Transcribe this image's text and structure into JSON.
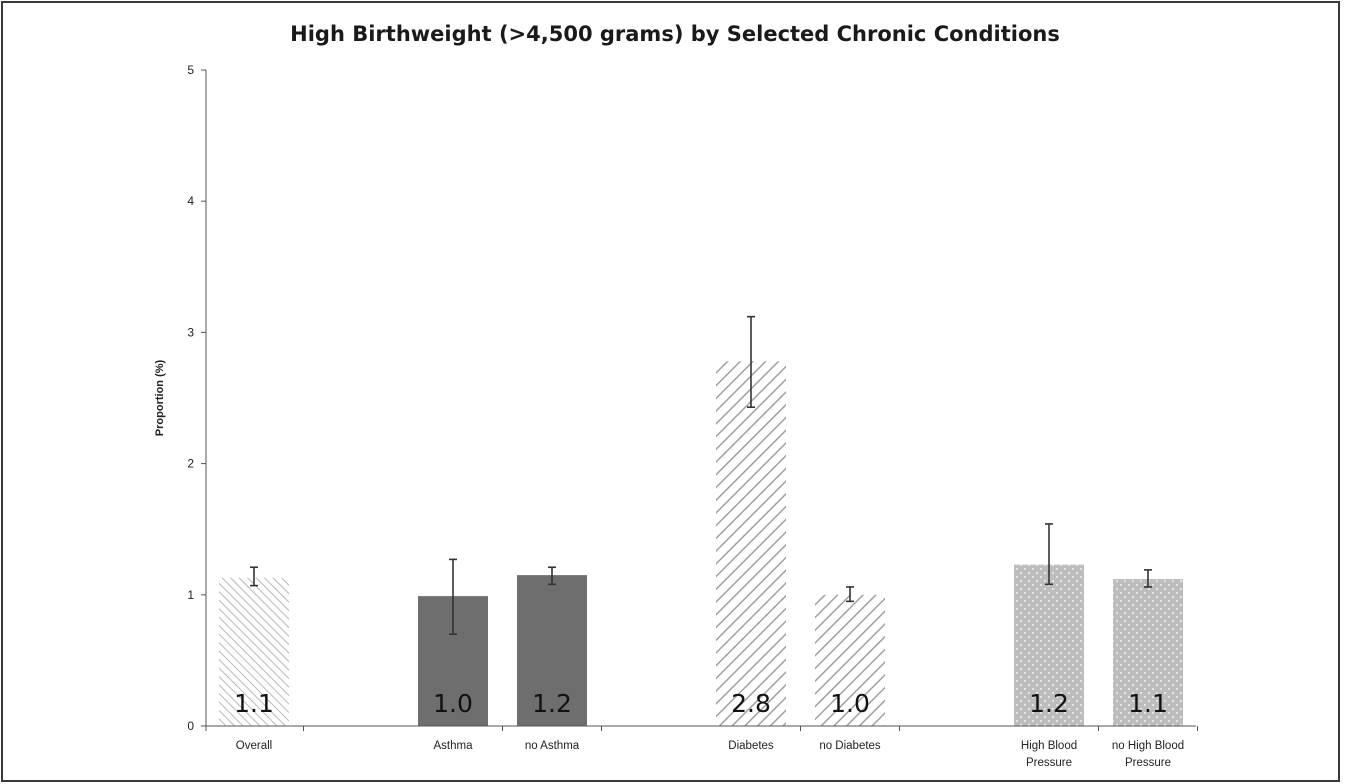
{
  "chart_data": {
    "type": "bar",
    "title": "High Birthweight (>4,500 grams) by Selected Chronic Conditions",
    "ylabel": "Proportion (%)",
    "xlabel": "",
    "ylim": [
      0,
      5
    ],
    "yticks": [
      "0",
      "1",
      "2",
      "3",
      "4",
      "5"
    ],
    "legend": "none",
    "grid": false,
    "categories": [
      {
        "label": [
          "Overall"
        ],
        "value": 1.13,
        "err_low": 1.07,
        "err_high": 1.21,
        "data_label": "1.1",
        "pattern": "hatch-light"
      },
      {
        "label": [
          "Asthma"
        ],
        "value": 0.99,
        "err_low": 0.7,
        "err_high": 1.27,
        "data_label": "1.0",
        "pattern": "solid-dark"
      },
      {
        "label": [
          "no Asthma"
        ],
        "value": 1.15,
        "err_low": 1.08,
        "err_high": 1.21,
        "data_label": "1.2",
        "pattern": "solid-dark"
      },
      {
        "label": [
          "Diabetes"
        ],
        "value": 2.78,
        "err_low": 2.43,
        "err_high": 3.12,
        "data_label": "2.8",
        "pattern": "hatch-medium"
      },
      {
        "label": [
          "no Diabetes"
        ],
        "value": 1.0,
        "err_low": 0.95,
        "err_high": 1.06,
        "data_label": "1.0",
        "pattern": "hatch-medium"
      },
      {
        "label": [
          "High Blood",
          "Pressure"
        ],
        "value": 1.23,
        "err_low": 1.08,
        "err_high": 1.54,
        "data_label": "1.2",
        "pattern": "dots"
      },
      {
        "label": [
          "no High Blood",
          "Pressure"
        ],
        "value": 1.12,
        "err_low": 1.06,
        "err_high": 1.19,
        "data_label": "1.1",
        "pattern": "dots"
      }
    ],
    "colors": {
      "solid_dark": "#6e6e6e",
      "hatch_light": "#b8b8b8",
      "hatch_medium": "#a0a0a0",
      "dots_fill": "#bdbdbd",
      "error_bar": "#333333",
      "axis": "#555555"
    }
  }
}
